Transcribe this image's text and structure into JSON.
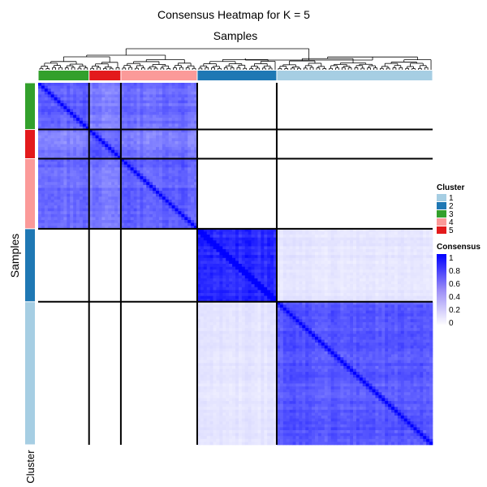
{
  "chart_data": {
    "type": "heatmap",
    "title": "Consensus Heatmap for K = 5",
    "column_title": "Samples",
    "row_title": "Samples",
    "annotation_label": "Cluster",
    "cluster_order": [
      "3",
      "5",
      "4",
      "2",
      "1"
    ],
    "cluster_sizes": [
      16,
      10,
      24,
      25,
      49
    ],
    "cluster_colors": {
      "1": "#a6cee3",
      "2": "#1f78b4",
      "3": "#33a02c",
      "4": "#fb9a99",
      "5": "#e31a1c"
    },
    "consensus_blocks": [
      [
        0.62,
        0.5,
        0.58,
        0.0,
        0.0
      ],
      [
        0.5,
        0.62,
        0.52,
        0.0,
        0.0
      ],
      [
        0.58,
        0.52,
        0.62,
        0.0,
        0.0
      ],
      [
        0.0,
        0.0,
        0.0,
        0.84,
        0.1
      ],
      [
        0.0,
        0.0,
        0.0,
        0.1,
        0.66
      ]
    ],
    "diagonal_value": 1.0,
    "color_scale": {
      "low": "#ffffff",
      "high": "#0000ff",
      "min": 0,
      "max": 1
    },
    "legend": {
      "cluster_title": "Cluster",
      "cluster_entries": [
        "1",
        "2",
        "3",
        "4",
        "5"
      ],
      "consensus_title": "Consensus",
      "consensus_ticks": [
        "1",
        "0.8",
        "0.6",
        "0.4",
        "0.2",
        "0"
      ],
      "placement": "right"
    }
  }
}
